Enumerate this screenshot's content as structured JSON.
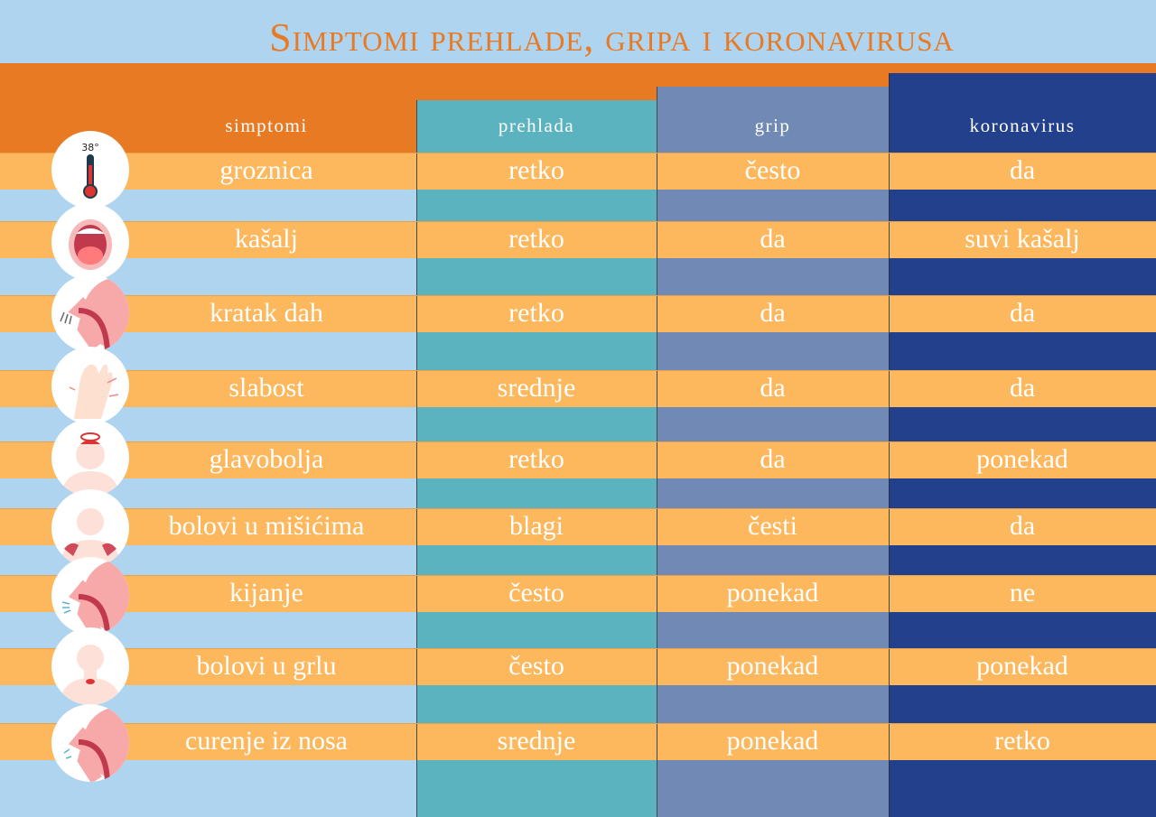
{
  "title": "Simptomi prehlade, gripa i koronavirusa",
  "headers": [
    "simptomi",
    "prehlada",
    "grip",
    "koronavirus"
  ],
  "colors": {
    "orange": "#e87a24",
    "row": "#fdb75c",
    "prehlada": "#5ab3bf",
    "grip": "#718ab5",
    "koronavirus": "#22408c",
    "background": "#afd4f0"
  },
  "thermometer_label": "38°",
  "rows": [
    {
      "symptom": "groznica",
      "icon": "thermometer-icon",
      "prehlada": "retko",
      "grip": "često",
      "koronavirus": "da"
    },
    {
      "symptom": "kašalj",
      "icon": "open-mouth-icon",
      "prehlada": "retko",
      "grip": "da",
      "koronavirus": "suvi kašalj"
    },
    {
      "symptom": "kratak dah",
      "icon": "breathing-profile-icon",
      "prehlada": "retko",
      "grip": "da",
      "koronavirus": "da"
    },
    {
      "symptom": "slabost",
      "icon": "weak-hand-icon",
      "prehlada": "srednje",
      "grip": "da",
      "koronavirus": "da"
    },
    {
      "symptom": "glavobolja",
      "icon": "headache-icon",
      "prehlada": "retko",
      "grip": "da",
      "koronavirus": "ponekad"
    },
    {
      "symptom": "bolovi u mišićima",
      "icon": "muscle-pain-icon",
      "prehlada": "blagi",
      "grip": "česti",
      "koronavirus": "da"
    },
    {
      "symptom": "kijanje",
      "icon": "sneezing-profile-icon",
      "prehlada": "često",
      "grip": "ponekad",
      "koronavirus": "ne"
    },
    {
      "symptom": "bolovi u grlu",
      "icon": "sore-throat-icon",
      "prehlada": "često",
      "grip": "ponekad",
      "koronavirus": "ponekad"
    },
    {
      "symptom": "curenje iz nosa",
      "icon": "runny-nose-profile-icon",
      "prehlada": "srednje",
      "grip": "ponekad",
      "koronavirus": "retko"
    }
  ]
}
